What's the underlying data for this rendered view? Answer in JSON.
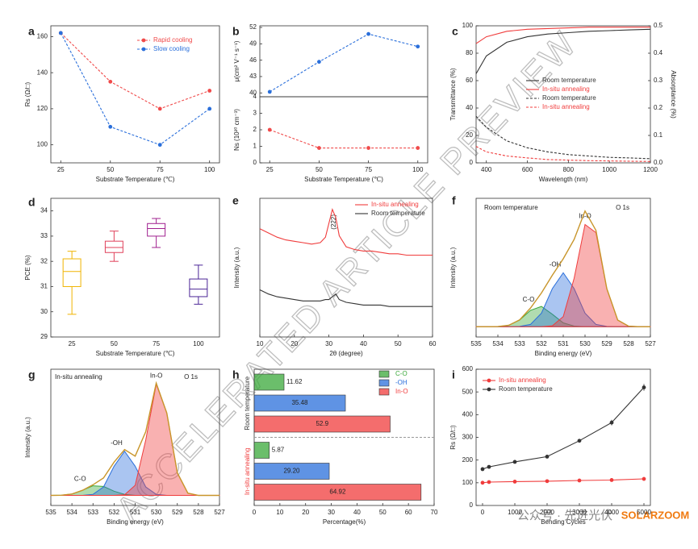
{
  "chart_data": [
    {
      "type": "line",
      "panel": "a",
      "xlabel": "Substrate Temperature (℃)",
      "ylabel": "Rs (Ω/□)",
      "x": [
        25,
        50,
        75,
        100
      ],
      "xlim": [
        20,
        105
      ],
      "xticks": [
        25,
        50,
        75,
        100
      ],
      "ylim": [
        90,
        166
      ],
      "yticks": [
        100,
        120,
        140,
        160
      ],
      "markers": true,
      "legend": "upper right",
      "series": [
        {
          "name": "Rapid cooling",
          "color": "#f04a4a",
          "dash": true,
          "values": [
            162,
            135,
            120,
            130
          ]
        },
        {
          "name": "Slow cooling",
          "color": "#2a6fdb",
          "dash": true,
          "values": [
            162,
            110,
            100,
            120
          ]
        }
      ]
    },
    {
      "type": "line",
      "panel": "b",
      "ylabel": "μ(cm² V⁻¹ s⁻¹)",
      "x": [
        25,
        50,
        75,
        100
      ],
      "xlim": [
        20,
        105
      ],
      "ylim": [
        39.3,
        52.3
      ],
      "yticks": [
        40,
        43,
        46,
        49,
        52
      ],
      "markers": true,
      "series": [
        {
          "color": "#2a6fdb",
          "dash": true,
          "values": [
            40.2,
            45.7,
            50.8,
            48.5
          ]
        }
      ]
    },
    {
      "type": "line",
      "xlabel": "Substrate Temperature (℃)",
      "ylabel": "Ns (10²⁰ cm⁻³)",
      "x": [
        25,
        50,
        75,
        100
      ],
      "xlim": [
        20,
        105
      ],
      "xticks": [
        25,
        50,
        75,
        100
      ],
      "ylim": [
        0,
        4
      ],
      "yticks": [
        0,
        1,
        2,
        3,
        4
      ],
      "markers": true,
      "series": [
        {
          "color": "#f04a4a",
          "dash": true,
          "values": [
            2.0,
            0.9,
            0.9,
            0.9
          ]
        }
      ]
    },
    {
      "type": "line",
      "panel": "c",
      "xlabel": "Wavelength (nm)",
      "ylabel": "Transmittance (%)",
      "y2label": "Absorptance (%)",
      "x": [
        350,
        400,
        500,
        600,
        700,
        800,
        900,
        1000,
        1100,
        1200
      ],
      "xlim": [
        350,
        1200
      ],
      "xticks": [
        400,
        600,
        800,
        1000,
        1200
      ],
      "ylim": [
        0,
        100
      ],
      "yticks": [
        0,
        20,
        40,
        60,
        80,
        100
      ],
      "y2lim": [
        0,
        0.5
      ],
      "y2ticks": [
        {
          "value": 0,
          "label": "0.0"
        },
        0.1,
        0.2,
        0.3,
        0.4,
        0.5
      ],
      "legend": "center right",
      "series": [
        {
          "name": "Room temperature",
          "color": "#333333",
          "values": [
            65,
            78,
            88,
            92,
            94,
            95,
            96,
            96.5,
            97,
            97.5
          ]
        },
        {
          "name": "In-situ annealing",
          "color": "#f03c3c",
          "values": [
            87,
            92,
            96,
            97.5,
            98,
            98.5,
            99,
            99,
            99,
            99
          ]
        },
        {
          "name": "Room temperature",
          "color": "#333333",
          "dash": true,
          "axis": "y2",
          "values": [
            0.17,
            0.13,
            0.08,
            0.055,
            0.04,
            0.03,
            0.025,
            0.02,
            0.018,
            0.015
          ]
        },
        {
          "name": "In-situ annealing",
          "color": "#f03c3c",
          "dash": true,
          "axis": "y2",
          "values": [
            0.06,
            0.04,
            0.025,
            0.018,
            0.012,
            0.01,
            0.008,
            0.007,
            0.006,
            0.005
          ]
        }
      ]
    },
    {
      "type": "box",
      "panel": "d",
      "xlabel": "Substrate Temperature (℃)",
      "ylabel": "PCE (%)",
      "categories": [
        "25",
        "50",
        "75",
        "100"
      ],
      "ylim": [
        29,
        34.5
      ],
      "yticks": [
        29,
        30,
        31,
        32,
        33,
        34
      ],
      "boxes": [
        {
          "color": "#f0b400",
          "min": 29.9,
          "q1": 31.0,
          "median": 31.6,
          "q3": 32.1,
          "max": 32.4
        },
        {
          "color": "#e0405a",
          "min": 32.0,
          "q1": 32.35,
          "median": 32.55,
          "q3": 32.8,
          "max": 33.2
        },
        {
          "color": "#a0208f",
          "min": 32.55,
          "q1": 33.0,
          "median": 33.3,
          "q3": 33.5,
          "max": 33.7
        },
        {
          "color": "#4b2596",
          "min": 30.3,
          "q1": 30.6,
          "median": 30.9,
          "q3": 31.3,
          "max": 31.85
        }
      ]
    },
    {
      "type": "line",
      "panel": "e",
      "xlabel": "2θ (degree)",
      "ylabel": "Intensity (a.u.)",
      "annotations": [
        "(222)"
      ],
      "x": [
        10,
        12.5,
        15,
        17.5,
        20,
        22.5,
        25,
        27.5,
        29,
        30,
        31,
        32,
        33,
        35,
        37.5,
        40,
        42.5,
        45,
        47.5,
        50,
        52.5,
        55,
        57.5,
        60
      ],
      "xlim": [
        10,
        60
      ],
      "xticks": [
        10,
        20,
        30,
        40,
        50,
        60
      ],
      "ylim": [
        0,
        10
      ],
      "legend": "upper right",
      "series": [
        {
          "name": "In-situ annealing",
          "color": "#f03c3c",
          "values": [
            7.8,
            7.5,
            7.2,
            7.0,
            6.9,
            6.8,
            6.7,
            6.8,
            7.2,
            8.2,
            9.2,
            8.6,
            7.3,
            6.5,
            6.3,
            6.2,
            6.2,
            6.1,
            6.0,
            6.0,
            5.9,
            5.9,
            5.9,
            5.9
          ]
        },
        {
          "name": "Room temperature",
          "color": "#333333",
          "values": [
            3.4,
            3.1,
            2.9,
            2.8,
            2.7,
            2.6,
            2.6,
            2.6,
            2.7,
            2.7,
            2.9,
            3.1,
            2.7,
            2.5,
            2.4,
            2.3,
            2.3,
            2.3,
            2.2,
            2.2,
            2.2,
            2.2,
            2.2,
            2.2
          ]
        }
      ]
    },
    {
      "type": "area",
      "panel": "f",
      "xlabel": "Binding energy (eV)",
      "ylabel": "Intensity (a.u.)",
      "annotations": [
        "Room temperature",
        "O 1s"
      ],
      "x": [
        535,
        534.5,
        534,
        533.5,
        533,
        532.5,
        532,
        531.5,
        531,
        530.5,
        530,
        529.5,
        529,
        528.5,
        528,
        527.5,
        527
      ],
      "xlim": [
        535,
        527
      ],
      "xticks": [
        535,
        534,
        533,
        532,
        531,
        530,
        529,
        528,
        527
      ],
      "ylim": [
        -0.08,
        1.0
      ],
      "series": [
        {
          "name": "C-O",
          "color": "#3aa83a",
          "values": [
            0,
            0,
            0.001,
            0.011,
            0.052,
            0.128,
            0.158,
            0.097,
            0.03,
            0.005,
            0,
            0,
            0,
            0,
            0,
            0,
            0
          ]
        },
        {
          "name": "-OH",
          "color": "#2a6fdb",
          "values": [
            0,
            0,
            0,
            0,
            0.002,
            0.018,
            0.105,
            0.297,
            0.42,
            0.297,
            0.105,
            0.018,
            0.002,
            0,
            0,
            0,
            0
          ]
        },
        {
          "name": "In-O",
          "color": "#f03c3c",
          "values": [
            0,
            0,
            0,
            0,
            0,
            0,
            0,
            0.007,
            0.079,
            0.378,
            0.796,
            0.733,
            0.295,
            0.052,
            0.004,
            0,
            0
          ]
        },
        {
          "color": "#c8952a",
          "values": [
            0,
            0,
            0.001,
            0.011,
            0.054,
            0.146,
            0.263,
            0.401,
            0.529,
            0.68,
            0.901,
            0.751,
            0.297,
            0.052,
            0.004,
            0,
            0
          ]
        }
      ]
    },
    {
      "type": "area",
      "panel": "g",
      "xlabel": "Binding energy (eV)",
      "ylabel": "Intensity (a.u.)",
      "annotations": [
        "In-situ annealing",
        "O 1s"
      ],
      "x": [
        535,
        534.5,
        534,
        533.5,
        533,
        532.5,
        532,
        531.5,
        531,
        530.5,
        530,
        529.5,
        529,
        528.5,
        528,
        527.5,
        527
      ],
      "xlim": [
        535,
        527
      ],
      "xticks": [
        535,
        534,
        533,
        532,
        531,
        530,
        529,
        528,
        527
      ],
      "ylim": [
        -0.08,
        1.0
      ],
      "series": [
        {
          "name": "C-O",
          "color": "#3aa83a",
          "values": [
            0,
            0.001,
            0.011,
            0.04,
            0.076,
            0.071,
            0.033,
            0.008,
            0,
            0,
            0,
            0,
            0,
            0,
            0,
            0,
            0
          ]
        },
        {
          "name": "-OH",
          "color": "#2a6fdb",
          "values": [
            0,
            0,
            0,
            0,
            0.008,
            0.067,
            0.231,
            0.35,
            0.231,
            0.067,
            0.008,
            0,
            0,
            0,
            0,
            0,
            0
          ]
        },
        {
          "name": "In-O",
          "color": "#f03c3c",
          "values": [
            0,
            0,
            0,
            0,
            0,
            0,
            0,
            0.005,
            0.08,
            0.438,
            0.882,
            0.653,
            0.178,
            0.018,
            0,
            0,
            0
          ]
        },
        {
          "color": "#c8952a",
          "values": [
            0,
            0.001,
            0.011,
            0.04,
            0.084,
            0.138,
            0.264,
            0.363,
            0.311,
            0.505,
            0.89,
            0.653,
            0.178,
            0.018,
            0,
            0,
            0
          ]
        }
      ]
    },
    {
      "type": "bar",
      "panel": "h",
      "xlabel": "Percentage(%)",
      "categories": [
        "Room temperature",
        "In-situ annealing"
      ],
      "category_colors": [
        "#333333",
        "#f03c3c"
      ],
      "xlim": [
        0,
        70
      ],
      "xticks": [
        0,
        10,
        20,
        30,
        40,
        50,
        60,
        70
      ],
      "legend": "upper right",
      "series": [
        {
          "name": "C-O",
          "color": "#3aa83a",
          "values": [
            11.62,
            5.87
          ],
          "value_labels": [
            "11.62",
            "5.87"
          ]
        },
        {
          "name": "-OH",
          "color": "#2a6fdb",
          "values": [
            35.48,
            29.2
          ],
          "value_labels": [
            "35.48",
            "29.20"
          ]
        },
        {
          "name": "In-O",
          "color": "#f03c3c",
          "values": [
            52.9,
            64.92
          ],
          "value_labels": [
            "52.9",
            "64.92"
          ]
        }
      ]
    },
    {
      "type": "line",
      "panel": "i",
      "xlabel": "Bending Cycles",
      "ylabel": "Rs (Ω/□)",
      "x": [
        0,
        200,
        1000,
        2000,
        3000,
        4000,
        5000
      ],
      "xlim": [
        -200,
        5200
      ],
      "xticks": [
        0,
        1000,
        2000,
        3000,
        4000,
        5000
      ],
      "ylim": [
        0,
        600
      ],
      "yticks": [
        0,
        100,
        200,
        300,
        400,
        500,
        600
      ],
      "markers": true,
      "legend": "upper left",
      "series": [
        {
          "name": "In-situ annealing",
          "color": "#f03c3c",
          "values": [
            100,
            103,
            105,
            107,
            110,
            112,
            117
          ],
          "errors": [
            4,
            4,
            4,
            4,
            4,
            5,
            6
          ]
        },
        {
          "name": "Room temperature",
          "color": "#333333",
          "values": [
            160,
            170,
            192,
            215,
            285,
            365,
            520
          ],
          "errors": [
            8,
            6,
            5,
            6,
            8,
            12,
            15
          ]
        }
      ]
    }
  ],
  "watermark": {
    "text": "ACCELERATED ARTICLE PREVIEW",
    "account": "公众号 · 先进光伏",
    "brand": "SOLARZOOM"
  }
}
